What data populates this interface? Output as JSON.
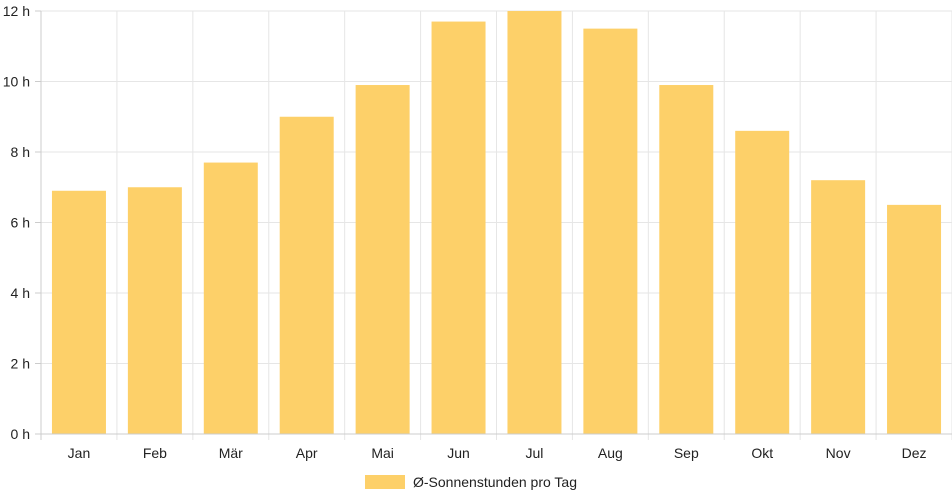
{
  "chart_data": {
    "type": "bar",
    "categories": [
      "Jan",
      "Feb",
      "Mär",
      "Apr",
      "Mai",
      "Jun",
      "Jul",
      "Aug",
      "Sep",
      "Okt",
      "Nov",
      "Dez"
    ],
    "series": [
      {
        "name": "Ø-Sonnenstunden pro Tag",
        "values": [
          6.9,
          7.0,
          7.7,
          9.0,
          9.9,
          11.7,
          12.0,
          11.5,
          9.9,
          8.6,
          7.2,
          6.5
        ],
        "color": "#fdd069"
      }
    ],
    "ylim": [
      0,
      12
    ],
    "yticks": [
      "0 h",
      "2 h",
      "4 h",
      "6 h",
      "8 h",
      "10 h",
      "12 h"
    ],
    "grid": true,
    "legend_position": "bottom"
  }
}
